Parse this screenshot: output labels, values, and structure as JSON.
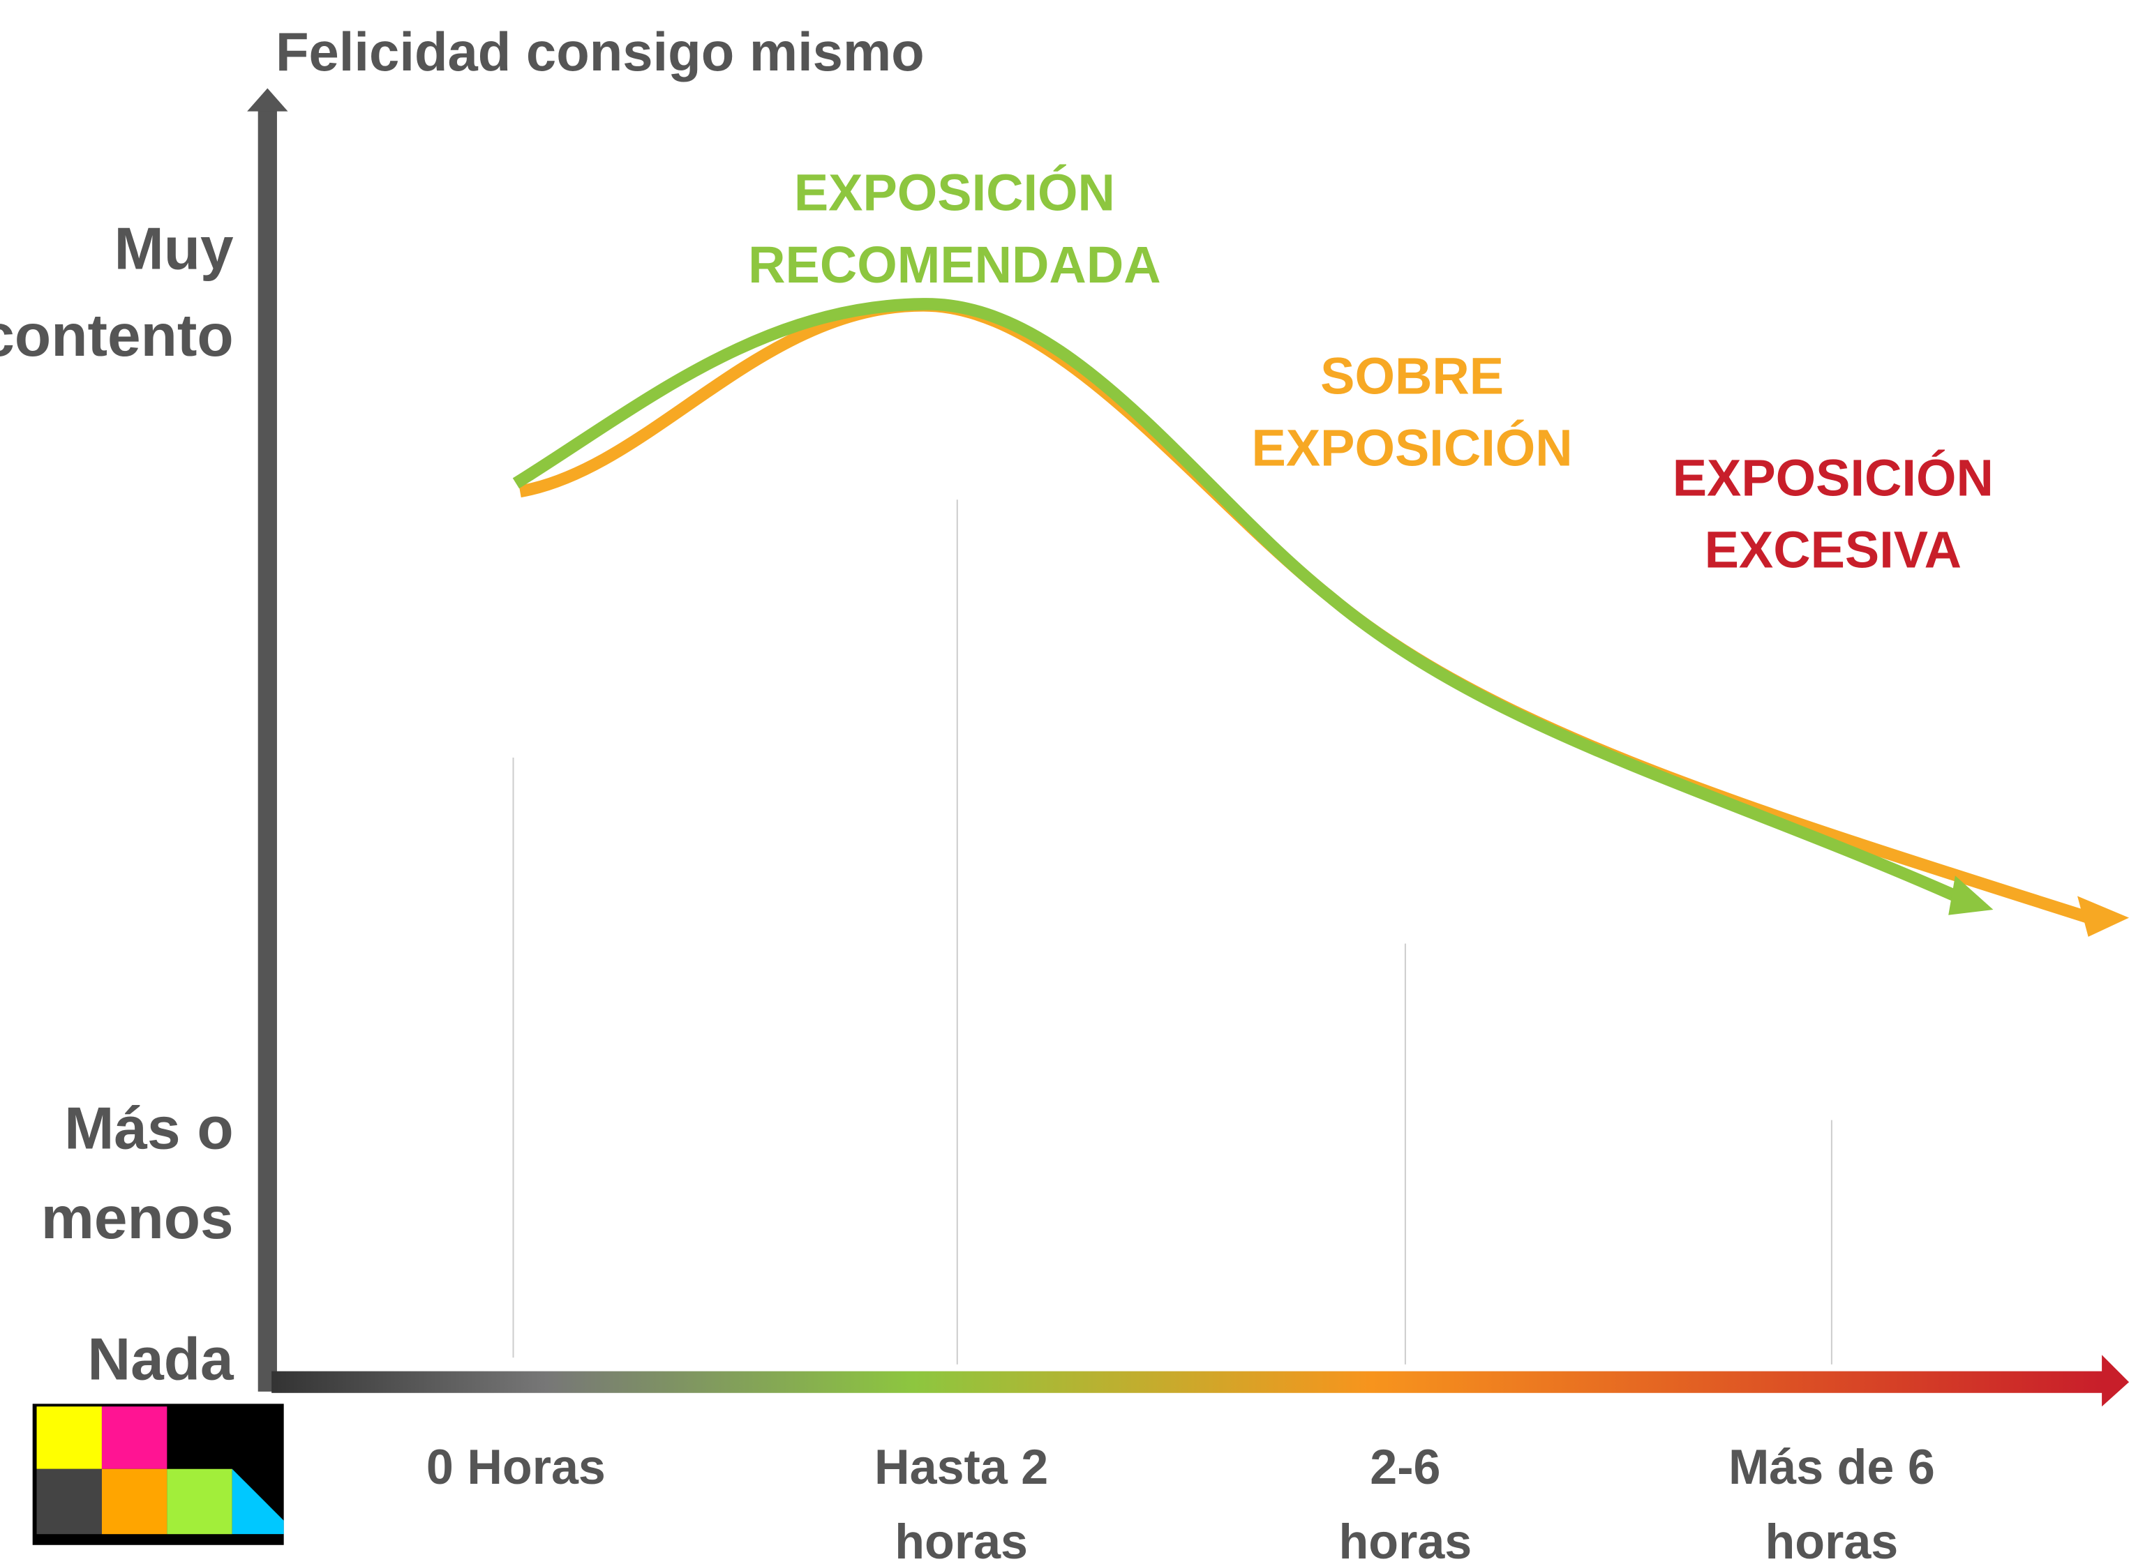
{
  "title": "Felicidad consigo mismo",
  "y_labels": [
    [
      "Muy",
      "contento"
    ],
    [
      "Más o",
      "menos"
    ],
    [
      "Nada"
    ]
  ],
  "x_labels": [
    [
      "0 Horas"
    ],
    [
      "Hasta 2",
      "horas"
    ],
    [
      "2-6",
      "horas"
    ],
    [
      "Más de 6",
      "horas"
    ]
  ],
  "annotations": [
    {
      "lines": [
        "EXPOSICIÓN",
        "RECOMENDADA"
      ],
      "color": "#8dc63f"
    },
    {
      "lines": [
        "SOBRE",
        "EXPOSICIÓN"
      ],
      "color": "#f7a823"
    },
    {
      "lines": [
        "EXPOSICIÓN",
        "EXCESIVA"
      ],
      "color": "#c81e2a"
    }
  ]
}
